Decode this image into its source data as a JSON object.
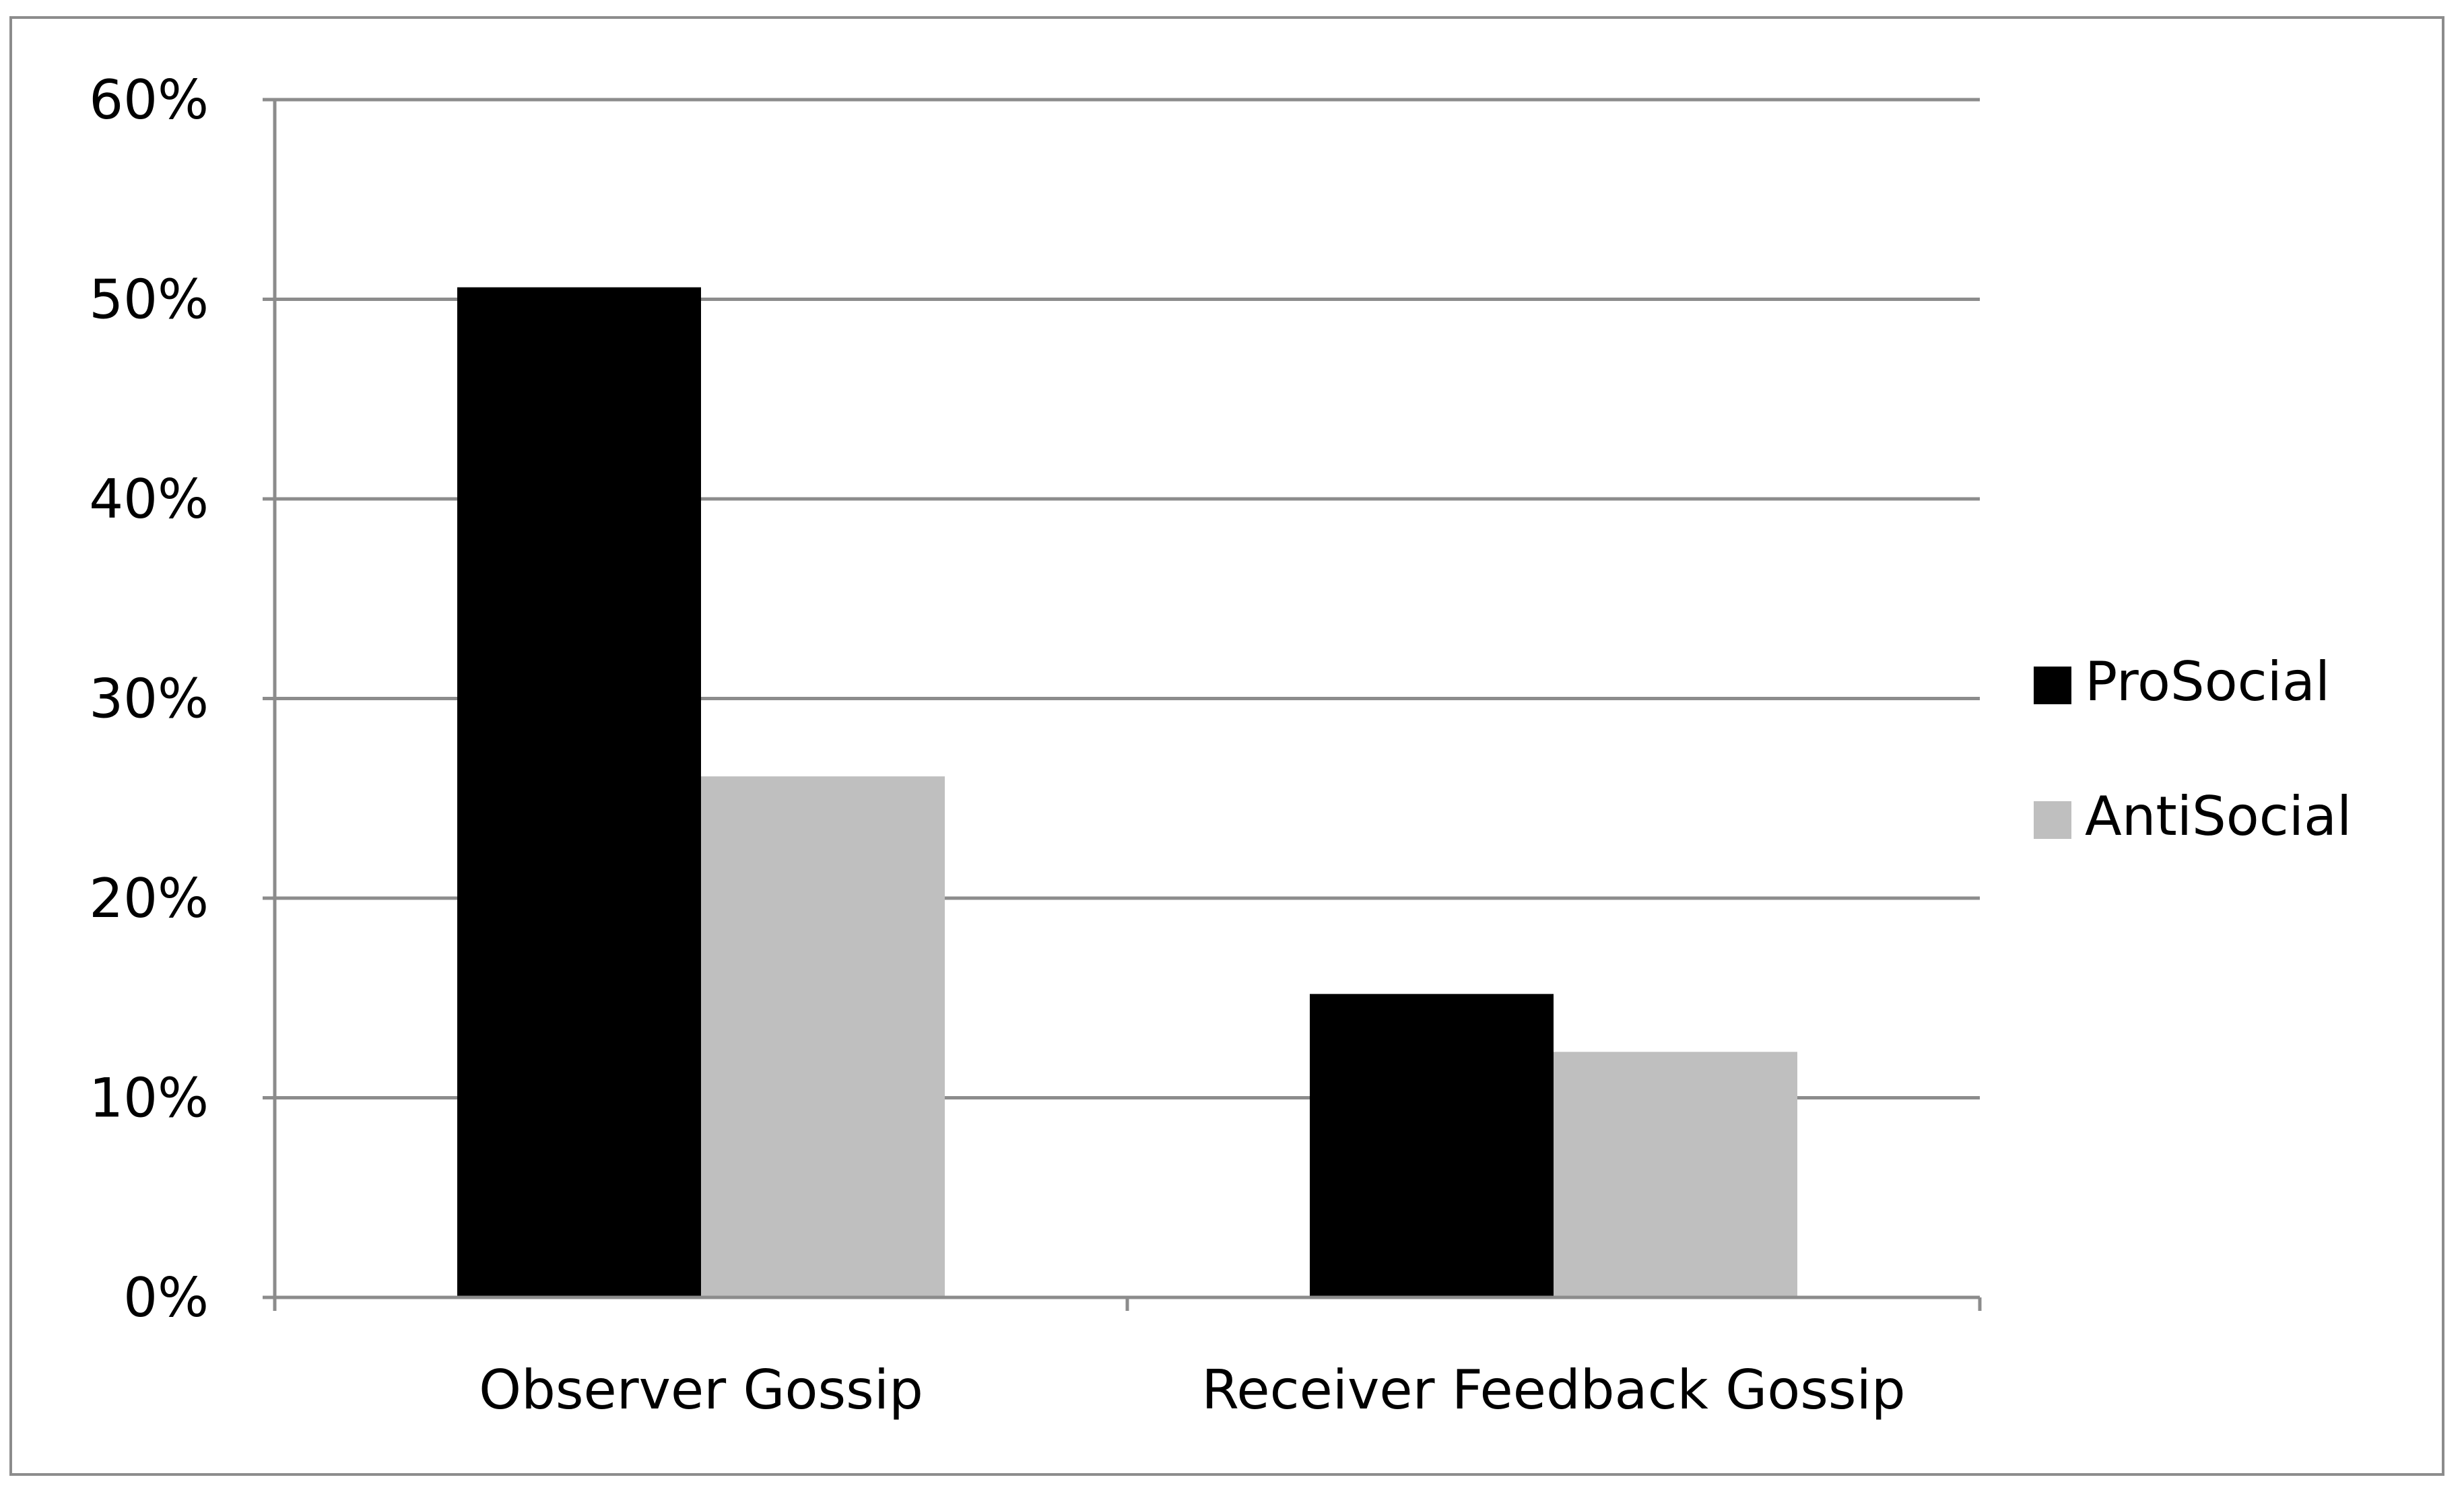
{
  "chart_data": {
    "type": "bar",
    "title": "",
    "xlabel": "",
    "ylabel": "",
    "categories": [
      "Observer Gossip",
      "Receiver Feedback Gossip"
    ],
    "series": [
      {
        "name": "ProSocial",
        "values": [
          50.6,
          15.2
        ],
        "color": "#000000"
      },
      {
        "name": "AntiSocial",
        "values": [
          26.1,
          12.3
        ],
        "color": "#bfbfbf"
      }
    ],
    "ylim": [
      0,
      60
    ],
    "yticks": [
      0,
      10,
      20,
      30,
      40,
      50,
      60
    ],
    "ytick_labels": [
      "0%",
      "10%",
      "20%",
      "30%",
      "40%",
      "50%",
      "60%"
    ],
    "grid": true,
    "legend_position": "right"
  }
}
